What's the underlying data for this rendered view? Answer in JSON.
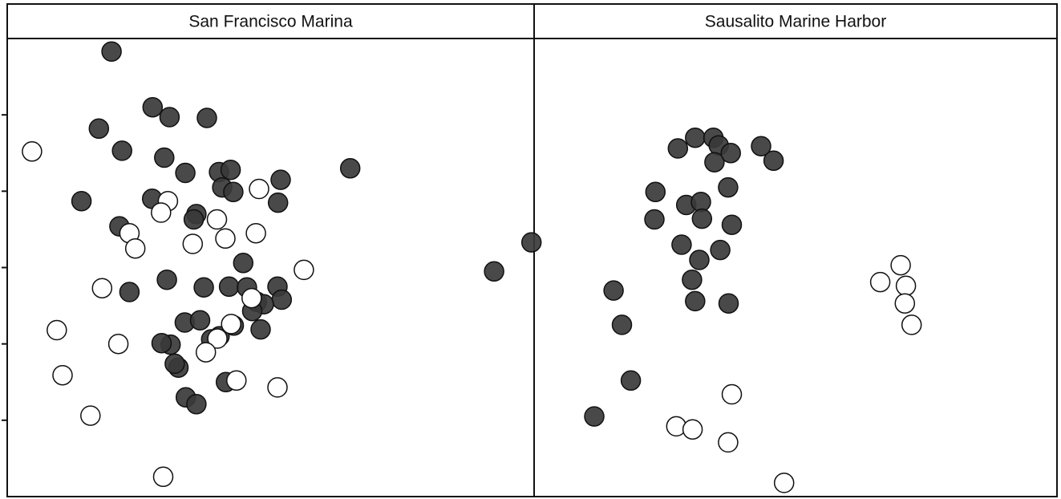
{
  "chart_data": {
    "type": "scatter",
    "ylim": [
      0,
      6.0
    ],
    "grid": false,
    "legend": "none",
    "colors": {
      "filled": "#3a3a3a",
      "hollow": "#ffffff",
      "edge": "#111111"
    },
    "panels": [
      {
        "title": "San Francisco Marina",
        "xlim": [
          0,
          100
        ],
        "series": [
          {
            "style": "filled",
            "x": [
              19.8,
              17.4,
              27.6,
              30.8,
              37.9,
              21.8,
              29.8,
              33.8,
              40.2,
              42.4,
              40.8,
              51.9,
              65.1,
              14.1,
              42.9,
              51.4,
              35.9,
              27.5,
              21.3,
              35.4,
              44.8,
              30.3,
              37.3,
              23.2,
              42.1,
              45.5,
              47.4,
              51.3,
              52.1,
              48.7,
              33.7,
              38.7,
              40.3,
              43.0,
              36.6,
              31.0,
              29.3,
              32.5,
              31.8,
              41.5,
              33.9,
              35.9,
              92.4,
              99.5,
              46.5,
              48.1
            ],
            "y": [
              5.83,
              4.82,
              5.1,
              4.97,
              4.96,
              4.53,
              4.44,
              4.24,
              4.25,
              4.28,
              4.05,
              4.15,
              4.3,
              3.87,
              3.99,
              3.85,
              3.7,
              3.9,
              3.54,
              3.63,
              3.06,
              2.84,
              2.74,
              2.68,
              2.75,
              2.74,
              2.55,
              2.75,
              2.58,
              2.52,
              2.28,
              2.06,
              2.1,
              2.24,
              2.31,
              1.99,
              2.01,
              1.69,
              1.74,
              1.5,
              1.3,
              1.21,
              2.95,
              3.33,
              2.43,
              2.19
            ]
          },
          {
            "style": "hollow",
            "x": [
              4.7,
              30.5,
              29.2,
              47.8,
              39.8,
              41.4,
              23.2,
              24.3,
              47.2,
              35.2,
              56.3,
              18.0,
              9.4,
              21.1,
              46.4,
              42.5,
              39.9,
              37.7,
              10.5,
              43.5,
              51.3,
              15.8,
              29.6
            ],
            "y": [
              4.52,
              3.87,
              3.72,
              4.03,
              3.63,
              3.38,
              3.45,
              3.25,
              3.45,
              3.31,
              2.97,
              2.73,
              2.18,
              2.0,
              2.6,
              2.26,
              2.07,
              1.89,
              1.59,
              1.52,
              1.43,
              1.06,
              0.26
            ]
          }
        ]
      },
      {
        "title": "Sausalito Marine Harbor",
        "xlim": [
          0,
          100
        ],
        "series": [
          {
            "style": "filled",
            "x": [
              27.5,
              30.8,
              34.3,
              35.3,
              34.5,
              37.6,
              43.4,
              45.8,
              23.2,
              29.1,
              31.9,
              37.1,
              23.0,
              32.1,
              37.8,
              28.2,
              35.6,
              31.6,
              30.2,
              15.2,
              16.8,
              18.5,
              11.5,
              30.8,
              37.2
            ],
            "y": [
              4.56,
              4.7,
              4.7,
              4.6,
              4.38,
              4.5,
              4.59,
              4.4,
              3.99,
              3.82,
              3.86,
              4.05,
              3.63,
              3.64,
              3.56,
              3.3,
              3.23,
              3.1,
              2.84,
              2.7,
              2.25,
              1.52,
              1.05,
              2.56,
              2.53
            ]
          },
          {
            "style": "hollow",
            "x": [
              66.2,
              70.1,
              71.1,
              70.9,
              72.2,
              37.8,
              27.2,
              30.3,
              37.1,
              47.8
            ],
            "y": [
              2.81,
              3.03,
              2.76,
              2.53,
              2.25,
              1.34,
              0.92,
              0.88,
              0.71,
              0.18
            ]
          }
        ]
      }
    ]
  }
}
